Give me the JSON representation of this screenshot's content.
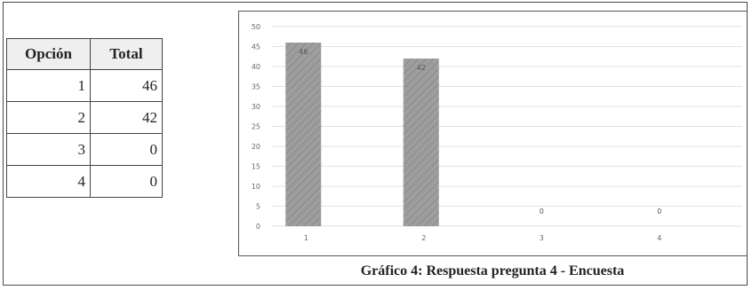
{
  "table": {
    "headers": [
      "Opción",
      "Total"
    ],
    "rows": [
      {
        "option": "1",
        "total": "46"
      },
      {
        "option": "2",
        "total": "42"
      },
      {
        "option": "3",
        "total": "0"
      },
      {
        "option": "4",
        "total": "0"
      }
    ]
  },
  "caption": "Gráfico 4: Respuesta pregunta 4 - Encuesta",
  "chart_data": {
    "type": "bar",
    "categories": [
      "1",
      "2",
      "3",
      "4"
    ],
    "values": [
      46,
      42,
      0,
      0
    ],
    "data_labels": [
      "46",
      "42",
      "0",
      "0"
    ],
    "yticks": [
      "0",
      "5",
      "10",
      "15",
      "20",
      "25",
      "30",
      "35",
      "40",
      "45",
      "50"
    ],
    "ylim": [
      0,
      50
    ],
    "grid": true,
    "bar_color": "#9e9e9e"
  }
}
